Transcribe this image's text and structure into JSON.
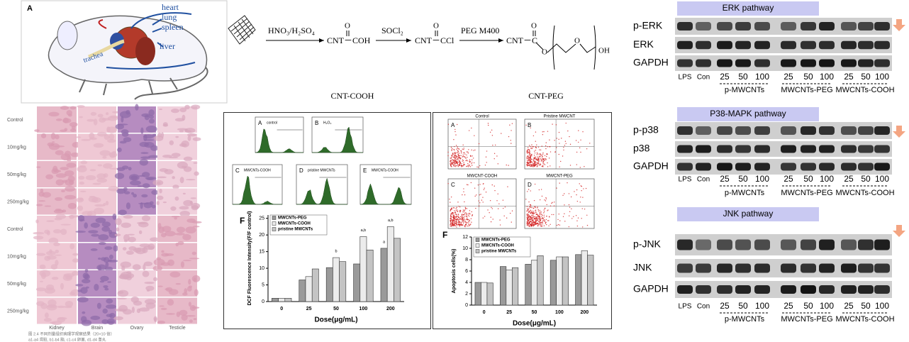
{
  "mouse": {
    "panel": "A",
    "labels": [
      "heart",
      "lung",
      "spleen",
      "liver",
      "trachea"
    ]
  },
  "scheme": {
    "reagents": [
      "HNO₃/H₂SO₄",
      "SOCl₂",
      "PEG M400"
    ],
    "products": [
      "CNT－COH",
      "CNT－CCl",
      "CNT－C"
    ],
    "oxygen": "O",
    "end_group": "OH",
    "captions": [
      "CNT-COOH",
      "CNT-PEG"
    ]
  },
  "histology": {
    "rows": [
      "Control",
      "10mg/kg",
      "50mg/kg",
      "250mg/kg",
      "Control",
      "10mg/kg",
      "50mg/kg",
      "250mg/kg"
    ],
    "columns": [
      "Kidney",
      "Brain",
      "Ovary",
      "Testicle"
    ],
    "caption": [
      "图 2.4 不同剂量组织病理学观察结果（20×10 倍）",
      "a1-a4 肾脏, b1-b4 脑, c1-c4 卵巢, d1-d4 睾丸"
    ]
  },
  "ros_panel": {
    "histograms": [
      {
        "letter": "A",
        "label": "control"
      },
      {
        "letter": "B",
        "label": "H₂O₂"
      },
      {
        "letter": "C",
        "label": "MWCNTs-COOH"
      },
      {
        "letter": "D",
        "label": "pristine MWCNTs"
      },
      {
        "letter": "E",
        "label": "MWCNTs-COOH"
      }
    ],
    "chart": {
      "type": "bar",
      "letter": "F",
      "ylabel": "DCF Fluorescence Intensity(F/F control)",
      "xlabel": "Dose(μg/mL)",
      "categories": [
        "0",
        "25",
        "50",
        "100",
        "200"
      ],
      "series": [
        {
          "name": "MWCNTs-PEG",
          "color": "#9a9a9a",
          "values": [
            1,
            6.5,
            10.2,
            11.3,
            16
          ]
        },
        {
          "name": "MWCNTs-COOH",
          "color": "#ececec",
          "values": [
            1,
            7.5,
            13.2,
            19.5,
            22.5
          ]
        },
        {
          "name": "pristine MWCNTs",
          "color": "#c4c4c4",
          "values": [
            1,
            9.8,
            12,
            15.5,
            19
          ]
        }
      ],
      "ylim": [
        0,
        26
      ],
      "yticks": [
        0,
        5,
        10,
        15,
        20,
        25
      ],
      "annotations": [
        "b",
        "a,b",
        "a",
        "a,b"
      ]
    }
  },
  "apoptosis_panel": {
    "plots": [
      {
        "letter": "A",
        "label": "Control"
      },
      {
        "letter": "B",
        "label": "Pristine MWCNT"
      },
      {
        "letter": "C",
        "label": "MWCNT-COOH"
      },
      {
        "letter": "D",
        "label": "MWCNT-PEG"
      }
    ],
    "chart": {
      "type": "bar",
      "letter": "F",
      "ylabel": "Apoptosis cells(%)",
      "xlabel": "Dose(μg/mL)",
      "categories": [
        "0",
        "25",
        "50",
        "100",
        "200"
      ],
      "series": [
        {
          "name": "MWCNTs-PEG",
          "color": "#9a9a9a",
          "values": [
            4,
            6.8,
            7.2,
            7.9,
            8.9
          ]
        },
        {
          "name": "MWCNTs-COOH",
          "color": "#ececec",
          "values": [
            4,
            6.2,
            7.9,
            8.5,
            9.6
          ]
        },
        {
          "name": "pristine MWCNTs",
          "color": "#c4c4c4",
          "values": [
            3.9,
            6.6,
            8.7,
            8.5,
            8.8
          ]
        }
      ],
      "ylim": [
        0,
        12
      ],
      "yticks": [
        0,
        2,
        4,
        6,
        8,
        10,
        12
      ]
    }
  },
  "western": {
    "panels": [
      {
        "title": "ERK pathway",
        "rows": [
          "p-ERK",
          "ERK",
          "GAPDH"
        ]
      },
      {
        "title": "P38-MAPK pathway",
        "rows": [
          "p-p38",
          "p38",
          "GAPDH"
        ]
      },
      {
        "title": "JNK pathway",
        "rows": [
          "p-JNK",
          "JNK",
          "GAPDH"
        ]
      }
    ],
    "lanes": [
      "LPS",
      "Con",
      "25",
      "50",
      "100",
      "25",
      "50",
      "100",
      "25",
      "50",
      "100"
    ],
    "groups": [
      "p-MWCNTs",
      "MWCNTs-PEG",
      "MWCNTs-COOH"
    ]
  }
}
